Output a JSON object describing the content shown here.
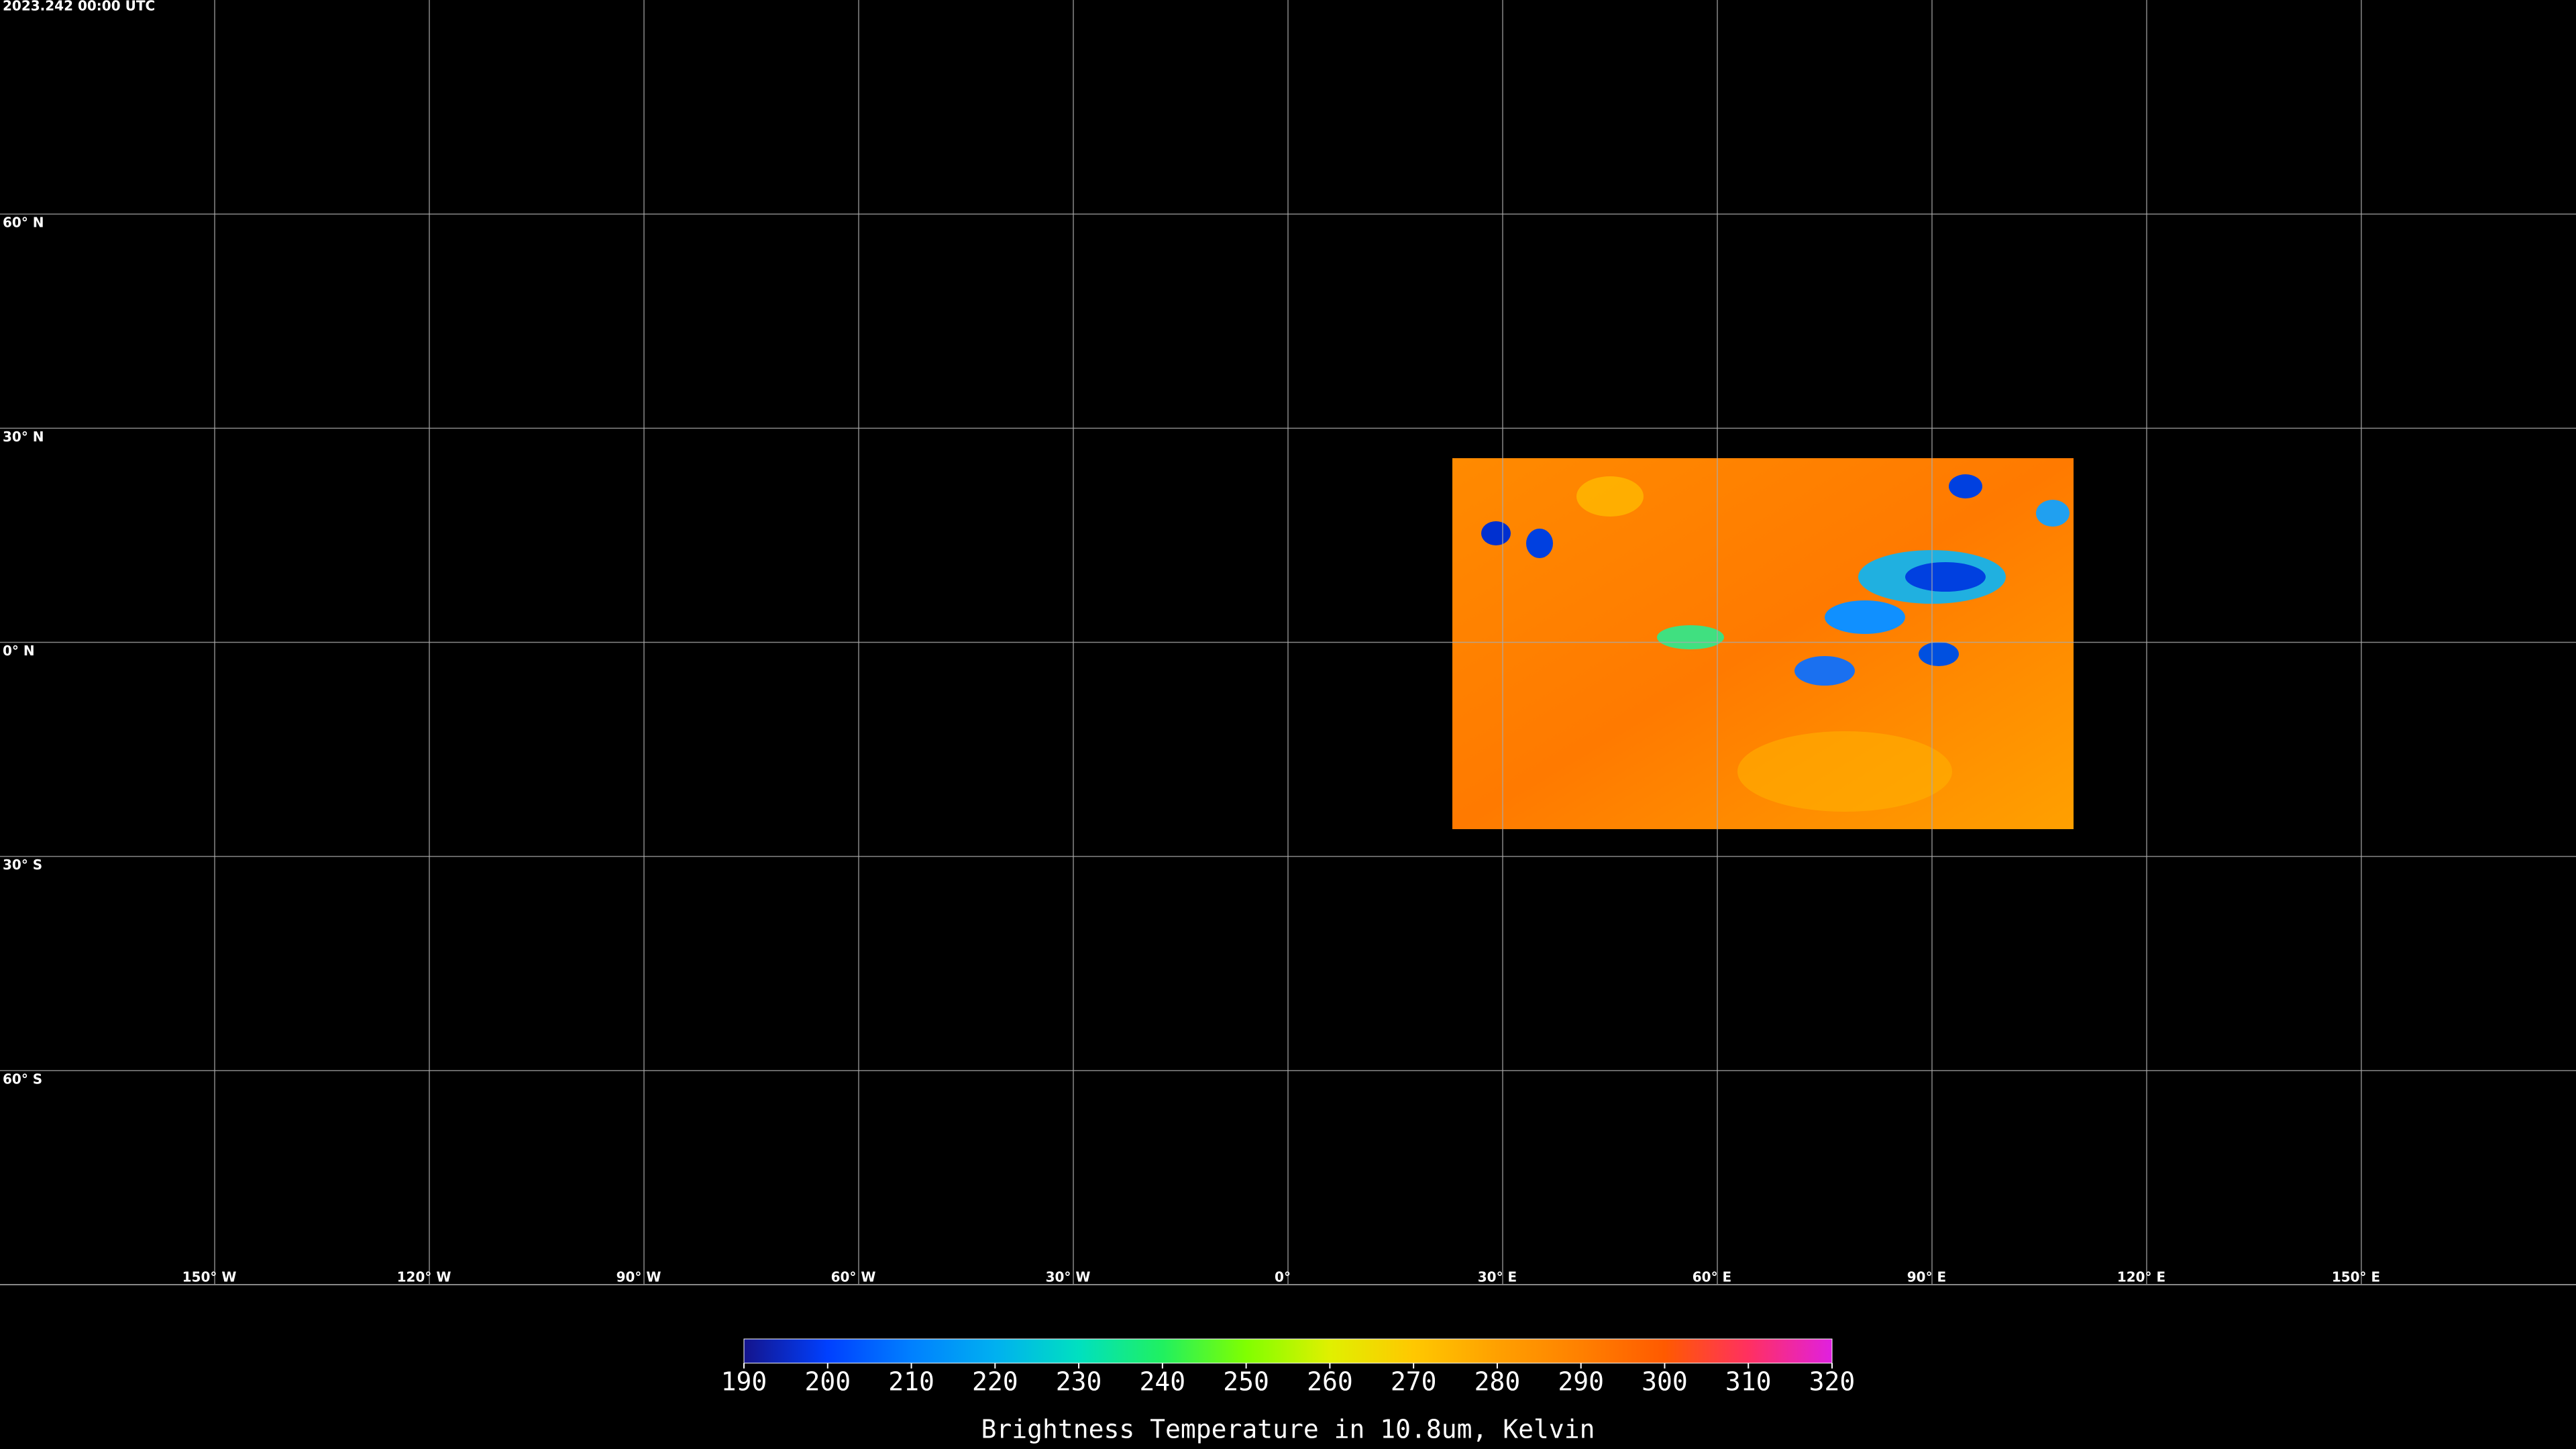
{
  "header": {
    "title": "2023.242 00:00 UTC"
  },
  "map": {
    "lat_lines": [
      {
        "value": 60,
        "label": "60° N"
      },
      {
        "value": 30,
        "label": "30° N"
      },
      {
        "value": 0,
        "label": "0° N"
      },
      {
        "value": -30,
        "label": "30° S"
      },
      {
        "value": -60,
        "label": "60° S"
      }
    ],
    "lon_lines": [
      {
        "value": -150,
        "label": "150° W"
      },
      {
        "value": -120,
        "label": "120° W"
      },
      {
        "value": -90,
        "label": "90° W"
      },
      {
        "value": -60,
        "label": "60° W"
      },
      {
        "value": -30,
        "label": "30° W"
      },
      {
        "value": 0,
        "label": "0°"
      },
      {
        "value": 30,
        "label": "30° E"
      },
      {
        "value": 60,
        "label": "60° E"
      },
      {
        "value": 90,
        "label": "90° E"
      },
      {
        "value": 120,
        "label": "120° E"
      },
      {
        "value": 150,
        "label": "150° E"
      }
    ]
  },
  "colorbar": {
    "range": [
      190,
      320
    ],
    "ticks": [
      190,
      200,
      210,
      220,
      230,
      240,
      250,
      260,
      270,
      280,
      290,
      300,
      310,
      320
    ],
    "label": "Brightness Temperature in 10.8um, Kelvin",
    "colormap": [
      "#14148c",
      "#0040ff",
      "#0080ff",
      "#00b0f0",
      "#00e0c0",
      "#20f060",
      "#80ff00",
      "#e0f000",
      "#ffc800",
      "#ffa000",
      "#ff8000",
      "#ff5a00",
      "#ff3060",
      "#e020e0"
    ]
  }
}
